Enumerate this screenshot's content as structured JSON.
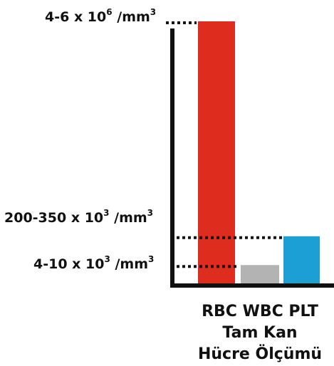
{
  "chart_data": {
    "type": "bar",
    "categories": [
      "RBC",
      "WBC",
      "PLT"
    ],
    "values": [
      100,
      7,
      18
    ],
    "colors": [
      "#de2c1f",
      "#b3b3b3",
      "#1b9fd5"
    ],
    "reference_labels": [
      {
        "text": "4-6 x 10",
        "exp": "6",
        "unit": "/mm",
        "unit_exp": "3",
        "target": "RBC"
      },
      {
        "text": "200-350 x 10",
        "exp": "3",
        "unit": "/mm",
        "unit_exp": "3",
        "target": "PLT"
      },
      {
        "text": "4-10 x 10",
        "exp": "3",
        "unit": "/mm",
        "unit_exp": "3",
        "target": "WBC"
      }
    ],
    "axis_color": "#111111",
    "grid": false
  },
  "caption": {
    "line1": "RBC WBC PLT",
    "line2": "Tam Kan",
    "line3": "Hücre Ölçümü"
  }
}
